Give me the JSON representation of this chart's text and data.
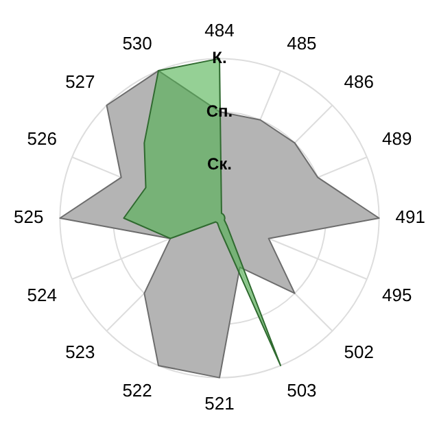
{
  "chart_data": {
    "type": "radar",
    "categories": [
      "484",
      "485",
      "486",
      "489",
      "491",
      "495",
      "502",
      "503",
      "521",
      "522",
      "523",
      "524",
      "525",
      "526",
      "527",
      "530"
    ],
    "series": [
      {
        "color": "#b4b4b4",
        "values": [
          2,
          2,
          2,
          2,
          3,
          1,
          2,
          1,
          3,
          3,
          2,
          1,
          3,
          2,
          3,
          3
        ]
      },
      {
        "color": "#4fb04f",
        "values": [
          3,
          0.1,
          0.1,
          0.1,
          0.1,
          0.1,
          0.2,
          3,
          0.2,
          0.1,
          0.1,
          1,
          1.8,
          1.5,
          2,
          3
        ]
      }
    ],
    "ylim": [
      0,
      3
    ],
    "yticks": [
      {
        "value": 1,
        "label": "Ск."
      },
      {
        "value": 2,
        "label": "Сп."
      },
      {
        "value": 3,
        "label": "К."
      }
    ],
    "grid": true,
    "legend": false,
    "marker": "none"
  }
}
